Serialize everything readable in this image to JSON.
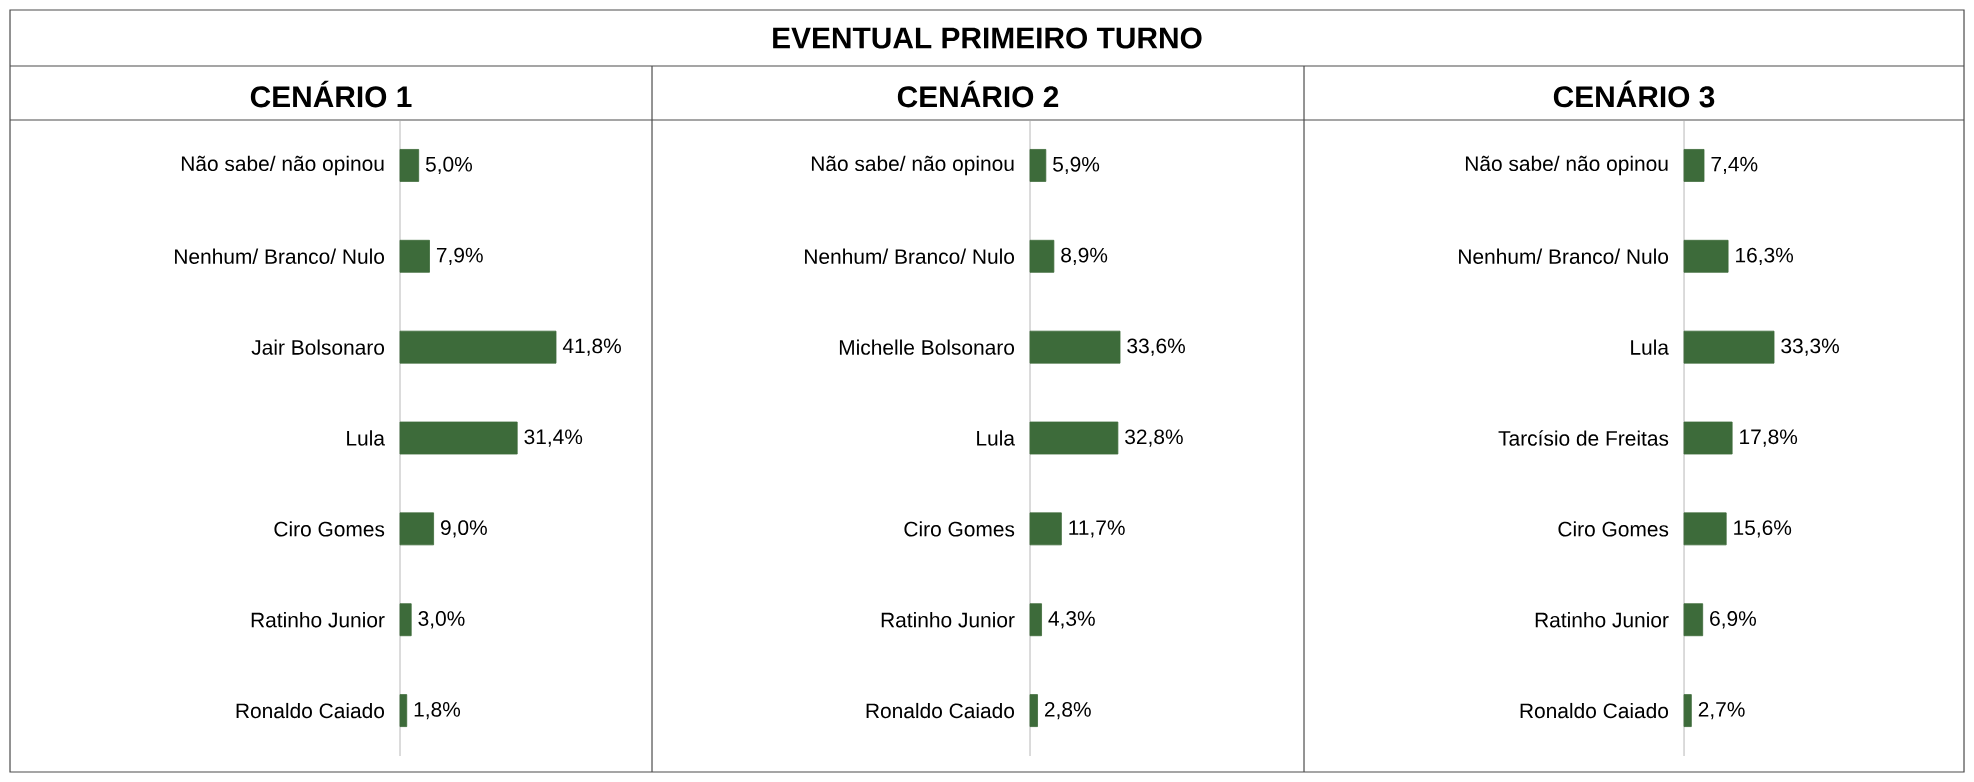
{
  "chart_data": [
    {
      "type": "other",
      "title": "EVENTUAL PRIMEIRO TURNO"
    },
    {
      "type": "bar",
      "orientation": "horizontal",
      "title": "CENÁRIO 1",
      "categories": [
        "Não sabe/ não opinou",
        "Nenhum/ Branco/ Nulo",
        "Jair Bolsonaro",
        "Lula",
        "Ciro Gomes",
        "Ratinho Junior",
        "Ronaldo Caiado"
      ],
      "values": [
        5.0,
        7.9,
        41.8,
        31.4,
        9.0,
        3.0,
        1.8
      ],
      "value_labels": [
        "5,0%",
        "7,9%",
        "41,8%",
        "31,4%",
        "9,0%",
        "3,0%",
        "1,8%"
      ],
      "color": "#3d6b3a"
    },
    {
      "type": "bar",
      "orientation": "horizontal",
      "title": "CENÁRIO 2",
      "categories": [
        "Não sabe/ não opinou",
        "Nenhum/ Branco/ Nulo",
        "Michelle Bolsonaro",
        "Lula",
        "Ciro Gomes",
        "Ratinho Junior",
        "Ronaldo Caiado"
      ],
      "values": [
        5.9,
        8.9,
        33.6,
        32.8,
        11.7,
        4.3,
        2.8
      ],
      "value_labels": [
        "5,9%",
        "8,9%",
        "33,6%",
        "32,8%",
        "11,7%",
        "4,3%",
        "2,8%"
      ],
      "color": "#3d6b3a"
    },
    {
      "type": "bar",
      "orientation": "horizontal",
      "title": "CENÁRIO 3",
      "categories": [
        "Não sabe/ não opinou",
        "Nenhum/ Branco/ Nulo",
        "Lula",
        "Tarcísio de Freitas",
        "Ciro Gomes",
        "Ratinho Junior",
        "Ronaldo Caiado"
      ],
      "values": [
        7.4,
        16.3,
        33.3,
        17.8,
        15.6,
        6.9,
        2.7
      ],
      "value_labels": [
        "7,4%",
        "16,3%",
        "33,3%",
        "17,8%",
        "15,6%",
        "6,9%",
        "2,7%"
      ],
      "color": "#3d6b3a"
    }
  ]
}
